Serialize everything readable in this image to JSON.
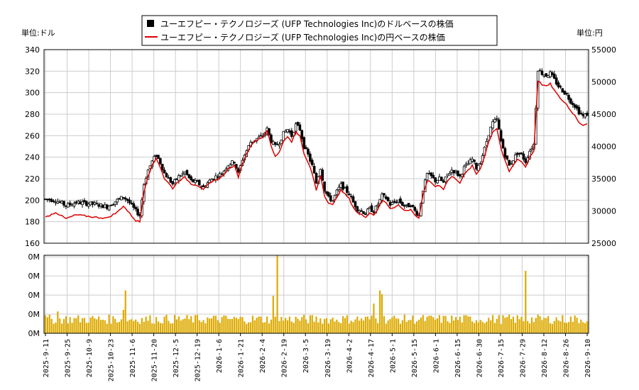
{
  "chart_data": {
    "type": "line",
    "legend": {
      "placement": "top-center",
      "entries": [
        {
          "label": "ユーエフピー・テクノロジーズ (UFP Technologies Inc)のドルベースの株価",
          "color": "#000000",
          "marker": "square"
        },
        {
          "label": "ユーエフピー・テクノロジーズ (UFP Technologies Inc)の円ベースの株価",
          "color": "#dd0000",
          "marker": "line"
        }
      ]
    },
    "left_unit_label": "単位:ドル",
    "right_unit_label": "単位:円",
    "y_left": {
      "min": 160,
      "max": 340,
      "ticks": [
        160,
        180,
        200,
        220,
        240,
        260,
        280,
        300,
        320,
        340
      ]
    },
    "y_right": {
      "min": 25000,
      "max": 55000,
      "ticks": [
        25000,
        30000,
        35000,
        40000,
        45000,
        50000,
        55000
      ]
    },
    "volume_axis": {
      "ticks": [
        "0M",
        "0M",
        "0M",
        "0M",
        "0M"
      ]
    },
    "x_tick_labels": [
      "2025-9-11",
      "2025-9-25",
      "2025-10-9",
      "2025-10-23",
      "2025-11-6",
      "2025-11-20",
      "2025-12-5",
      "2025-12-19",
      "2026-1-6",
      "2026-1-21",
      "2026-2-4",
      "2026-2-19",
      "2026-3-5",
      "2026-3-19",
      "2026-4-2",
      "2026-4-17",
      "2026-5-1",
      "2026-5-15",
      "2026-6-1",
      "2026-6-15",
      "2026-6-30",
      "2026-7-15",
      "2026-7-29",
      "2026-8-12",
      "2026-8-26",
      "2026-9-10"
    ],
    "grid": true,
    "num_days": 252,
    "series": [
      {
        "name": "ユーエフピー・テクノロジーズ (UFP Technologies Inc)のドルベースの株価",
        "unit": "USD",
        "anchors": [
          [
            0,
            201
          ],
          [
            5,
            200
          ],
          [
            10,
            195
          ],
          [
            15,
            198
          ],
          [
            20,
            197
          ],
          [
            25,
            196
          ],
          [
            30,
            194
          ],
          [
            35,
            200
          ],
          [
            38,
            203
          ],
          [
            40,
            200
          ],
          [
            44,
            190
          ],
          [
            46,
            186
          ],
          [
            48,
            215
          ],
          [
            50,
            228
          ],
          [
            52,
            236
          ],
          [
            54,
            242
          ],
          [
            56,
            235
          ],
          [
            58,
            225
          ],
          [
            60,
            220
          ],
          [
            62,
            215
          ],
          [
            65,
            222
          ],
          [
            68,
            226
          ],
          [
            71,
            218
          ],
          [
            74,
            216
          ],
          [
            77,
            212
          ],
          [
            80,
            218
          ],
          [
            83,
            222
          ],
          [
            86,
            225
          ],
          [
            89,
            233
          ],
          [
            92,
            236
          ],
          [
            94,
            225
          ],
          [
            96,
            238
          ],
          [
            98,
            246
          ],
          [
            100,
            254
          ],
          [
            102,
            256
          ],
          [
            104,
            258
          ],
          [
            106,
            260
          ],
          [
            108,
            266
          ],
          [
            110,
            255
          ],
          [
            112,
            250
          ],
          [
            114,
            254
          ],
          [
            116,
            262
          ],
          [
            118,
            266
          ],
          [
            120,
            260
          ],
          [
            122,
            270
          ],
          [
            124,
            266
          ],
          [
            126,
            250
          ],
          [
            128,
            242
          ],
          [
            130,
            232
          ],
          [
            132,
            216
          ],
          [
            134,
            230
          ],
          [
            136,
            210
          ],
          [
            138,
            202
          ],
          [
            140,
            200
          ],
          [
            142,
            208
          ],
          [
            144,
            214
          ],
          [
            146,
            210
          ],
          [
            148,
            206
          ],
          [
            150,
            198
          ],
          [
            152,
            192
          ],
          [
            154,
            190
          ],
          [
            156,
            188
          ],
          [
            158,
            192
          ],
          [
            160,
            190
          ],
          [
            162,
            196
          ],
          [
            164,
            204
          ],
          [
            166,
            202
          ],
          [
            168,
            196
          ],
          [
            170,
            198
          ],
          [
            172,
            200
          ],
          [
            174,
            196
          ],
          [
            176,
            194
          ],
          [
            178,
            196
          ],
          [
            180,
            190
          ],
          [
            182,
            186
          ],
          [
            184,
            210
          ],
          [
            186,
            224
          ],
          [
            188,
            222
          ],
          [
            190,
            218
          ],
          [
            192,
            220
          ],
          [
            194,
            216
          ],
          [
            196,
            224
          ],
          [
            198,
            228
          ],
          [
            200,
            226
          ],
          [
            202,
            222
          ],
          [
            204,
            230
          ],
          [
            206,
            234
          ],
          [
            208,
            238
          ],
          [
            210,
            230
          ],
          [
            212,
            236
          ],
          [
            214,
            248
          ],
          [
            216,
            262
          ],
          [
            218,
            272
          ],
          [
            220,
            275
          ],
          [
            222,
            255
          ],
          [
            224,
            242
          ],
          [
            226,
            232
          ],
          [
            228,
            238
          ],
          [
            230,
            244
          ],
          [
            232,
            242
          ],
          [
            234,
            236
          ],
          [
            236,
            246
          ],
          [
            238,
            252
          ],
          [
            240,
            322
          ],
          [
            242,
            318
          ],
          [
            244,
            316
          ],
          [
            246,
            318
          ],
          [
            248,
            312
          ],
          [
            250,
            306
          ],
          [
            252,
            302
          ],
          [
            254,
            298
          ],
          [
            256,
            292
          ],
          [
            258,
            288
          ],
          [
            260,
            282
          ],
          [
            262,
            278
          ],
          [
            264,
            280
          ]
        ]
      },
      {
        "name": "ユーエフピー・テクノロジーズ (UFP Technologies Inc)の円ベースの株価",
        "unit": "JPY",
        "anchors": [
          [
            0,
            29000
          ],
          [
            5,
            29800
          ],
          [
            10,
            28800
          ],
          [
            15,
            29400
          ],
          [
            20,
            29200
          ],
          [
            25,
            29000
          ],
          [
            30,
            28900
          ],
          [
            35,
            29800
          ],
          [
            38,
            30800
          ],
          [
            40,
            30000
          ],
          [
            44,
            28500
          ],
          [
            46,
            28300
          ],
          [
            48,
            33000
          ],
          [
            50,
            35500
          ],
          [
            52,
            37000
          ],
          [
            54,
            38200
          ],
          [
            56,
            36800
          ],
          [
            58,
            35000
          ],
          [
            60,
            34300
          ],
          [
            62,
            33500
          ],
          [
            65,
            34700
          ],
          [
            68,
            35200
          ],
          [
            71,
            34200
          ],
          [
            74,
            34000
          ],
          [
            77,
            33400
          ],
          [
            80,
            34200
          ],
          [
            83,
            34800
          ],
          [
            86,
            35300
          ],
          [
            89,
            36500
          ],
          [
            92,
            37000
          ],
          [
            94,
            35300
          ],
          [
            96,
            37400
          ],
          [
            98,
            38800
          ],
          [
            100,
            40200
          ],
          [
            102,
            40800
          ],
          [
            104,
            41200
          ],
          [
            106,
            41500
          ],
          [
            108,
            42500
          ],
          [
            110,
            40000
          ],
          [
            112,
            38400
          ],
          [
            114,
            39200
          ],
          [
            116,
            40800
          ],
          [
            118,
            41600
          ],
          [
            120,
            40600
          ],
          [
            122,
            42400
          ],
          [
            124,
            41600
          ],
          [
            126,
            38800
          ],
          [
            128,
            37500
          ],
          [
            130,
            35800
          ],
          [
            132,
            33200
          ],
          [
            134,
            35600
          ],
          [
            136,
            32400
          ],
          [
            138,
            31200
          ],
          [
            140,
            30900
          ],
          [
            142,
            32200
          ],
          [
            144,
            33200
          ],
          [
            146,
            32600
          ],
          [
            148,
            31900
          ],
          [
            150,
            30600
          ],
          [
            152,
            29700
          ],
          [
            154,
            29400
          ],
          [
            156,
            29100
          ],
          [
            158,
            29700
          ],
          [
            160,
            29400
          ],
          [
            162,
            30300
          ],
          [
            164,
            31600
          ],
          [
            166,
            31300
          ],
          [
            168,
            30400
          ],
          [
            170,
            30600
          ],
          [
            172,
            30900
          ],
          [
            174,
            30300
          ],
          [
            176,
            30000
          ],
          [
            178,
            30300
          ],
          [
            180,
            29400
          ],
          [
            182,
            28800
          ],
          [
            184,
            32500
          ],
          [
            186,
            34700
          ],
          [
            188,
            34400
          ],
          [
            190,
            33800
          ],
          [
            192,
            34000
          ],
          [
            194,
            33400
          ],
          [
            196,
            34700
          ],
          [
            198,
            35300
          ],
          [
            200,
            35000
          ],
          [
            202,
            34400
          ],
          [
            204,
            35600
          ],
          [
            206,
            36300
          ],
          [
            208,
            37000
          ],
          [
            210,
            35700
          ],
          [
            212,
            36600
          ],
          [
            214,
            38500
          ],
          [
            216,
            40700
          ],
          [
            218,
            42300
          ],
          [
            220,
            42800
          ],
          [
            222,
            39700
          ],
          [
            224,
            37700
          ],
          [
            226,
            36100
          ],
          [
            228,
            37100
          ],
          [
            230,
            38000
          ],
          [
            232,
            37700
          ],
          [
            234,
            36800
          ],
          [
            236,
            38400
          ],
          [
            238,
            39300
          ],
          [
            240,
            50200
          ],
          [
            242,
            49600
          ],
          [
            244,
            49300
          ],
          [
            246,
            49700
          ],
          [
            248,
            48700
          ],
          [
            250,
            47800
          ],
          [
            252,
            47100
          ],
          [
            254,
            46500
          ],
          [
            256,
            45500
          ],
          [
            258,
            44800
          ],
          [
            260,
            43800
          ],
          [
            262,
            43300
          ],
          [
            264,
            43600
          ]
        ]
      }
    ],
    "volume_series": {
      "name": "出来高",
      "color": "#ddaa00",
      "relative_spikes": [
        [
          6,
          0.28
        ],
        [
          38,
          0.3
        ],
        [
          39,
          0.55
        ],
        [
          111,
          0.48
        ],
        [
          113,
          1.0
        ],
        [
          160,
          0.38
        ],
        [
          163,
          0.55
        ],
        [
          164,
          0.5
        ],
        [
          234,
          0.8
        ]
      ],
      "baseline": 0.12
    }
  }
}
